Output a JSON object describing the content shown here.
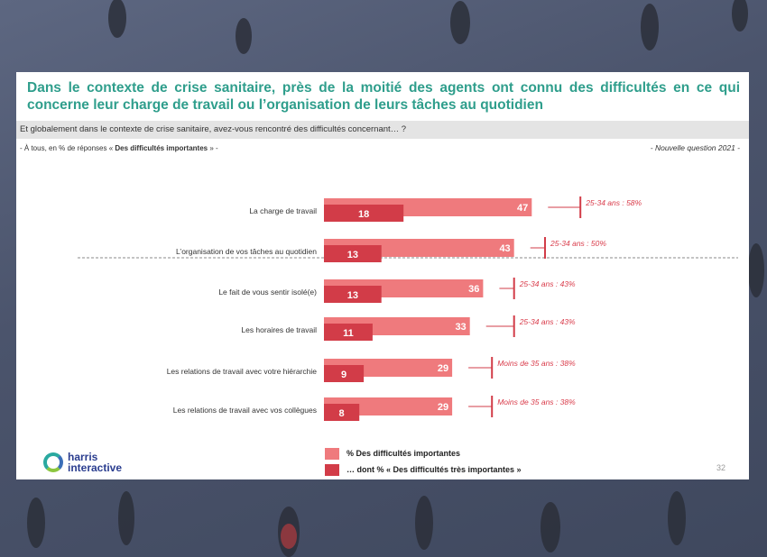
{
  "title": "Dans le contexte de crise sanitaire, près de la moitié des agents ont connu des difficultés en ce qui concerne leur charge de travail ou l’organisation de leurs tâches au quotidien",
  "question": "Et globalement dans le contexte de crise sanitaire, avez-vous rencontré des difficultés concernant… ?",
  "subnote_prefix": "- À tous, en % de réponses « ",
  "subnote_bold": "Des difficultés importantes",
  "subnote_suffix": " » -",
  "new_question": "- Nouvelle question 2021 -",
  "legend": {
    "item1": "% Des difficultés importantes",
    "item2": "… dont % « Des difficultés très importantes »"
  },
  "logo": {
    "line1": "harris",
    "line2": "interactive"
  },
  "page_number": "32",
  "colors": {
    "light": "#ef7a7d",
    "dark": "#d23c48",
    "title": "#2f9e8c"
  },
  "chart_data": {
    "type": "bar",
    "orientation": "horizontal",
    "categories": [
      "La charge de travail",
      "L’organisation de vos tâches au quotidien",
      "Le fait de vous sentir isolé(e)",
      "Les horaires de travail",
      "Les relations de travail avec votre hiérarchie",
      "Les relations de travail avec vos collègues"
    ],
    "series": [
      {
        "name": "% Des difficultés importantes",
        "values": [
          47,
          43,
          36,
          33,
          29,
          29
        ]
      },
      {
        "name": "… dont % « Des difficultés très importantes »",
        "values": [
          18,
          13,
          13,
          11,
          9,
          8
        ]
      }
    ],
    "annotations": [
      {
        "text": "25-34 ans : 58%",
        "value": 58
      },
      {
        "text": "25-34 ans : 50%",
        "value": 50
      },
      {
        "text": "25-34 ans : 43%",
        "value": 43
      },
      {
        "text": "25-34 ans : 43%",
        "value": 43
      },
      {
        "text": "Moins de 35 ans : 38%",
        "value": 38
      },
      {
        "text": "Moins de 35 ans : 38%",
        "value": 38
      }
    ],
    "xlim": [
      0,
      100
    ],
    "grid": false
  }
}
